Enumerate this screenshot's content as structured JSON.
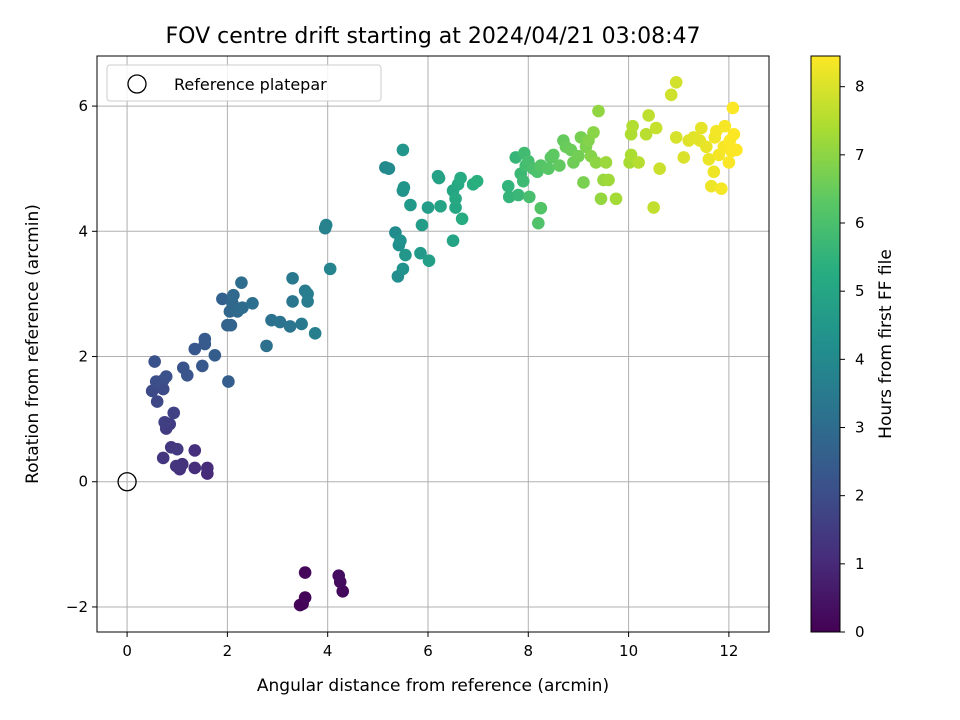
{
  "chart_data": {
    "type": "scatter",
    "title": "FOV centre drift starting at 2024/04/21 03:08:47",
    "xlabel": "Angular distance from reference (arcmin)",
    "ylabel": "Rotation from reference (arcmin)",
    "xlim": [
      -0.6,
      12.8
    ],
    "ylim": [
      -2.4,
      6.8
    ],
    "xticks": [
      0,
      2,
      4,
      6,
      8,
      10,
      12
    ],
    "yticks": [
      -2,
      0,
      2,
      4,
      6
    ],
    "xtick_labels": [
      "0",
      "2",
      "4",
      "6",
      "8",
      "10",
      "12"
    ],
    "ytick_labels": [
      "−2",
      "0",
      "2",
      "4",
      "6"
    ],
    "grid": true,
    "legend": {
      "placement": "top-left",
      "label": "Reference platepar",
      "marker": "open-circle"
    },
    "reference_point": {
      "x": 0,
      "y": 0
    },
    "colorbar": {
      "label": "Hours from first FF file",
      "colormap": "viridis",
      "range": [
        0,
        8.45
      ],
      "ticks": [
        0,
        1,
        2,
        3,
        4,
        5,
        6,
        7,
        8
      ],
      "tick_labels": [
        "0",
        "1",
        "2",
        "3",
        "4",
        "5",
        "6",
        "7",
        "8"
      ]
    },
    "series": [
      {
        "points": [
          [
            3.5,
            -1.95,
            0.05
          ],
          [
            3.45,
            -1.97,
            0.08
          ],
          [
            3.55,
            -1.85,
            0.12
          ],
          [
            3.55,
            -1.45,
            0.15
          ],
          [
            4.3,
            -1.75,
            0.2
          ],
          [
            4.25,
            -1.6,
            0.25
          ],
          [
            4.22,
            -1.5,
            0.3
          ],
          [
            1.6,
            0.13,
            1.0
          ],
          [
            1.6,
            0.22,
            1.05
          ],
          [
            1.35,
            0.22,
            1.1
          ],
          [
            1.35,
            0.5,
            1.15
          ],
          [
            1.05,
            0.2,
            1.2
          ],
          [
            1.1,
            0.28,
            1.25
          ],
          [
            0.98,
            0.25,
            1.3
          ],
          [
            0.72,
            0.38,
            1.35
          ],
          [
            0.88,
            0.55,
            1.4
          ],
          [
            1.0,
            0.52,
            1.45
          ],
          [
            0.78,
            0.85,
            1.5
          ],
          [
            0.85,
            0.92,
            1.55
          ],
          [
            0.75,
            0.95,
            1.6
          ],
          [
            0.93,
            1.1,
            1.65
          ],
          [
            0.6,
            1.28,
            1.85
          ],
          [
            0.5,
            1.45,
            1.9
          ],
          [
            0.72,
            1.48,
            1.95
          ],
          [
            0.72,
            1.62,
            2.0
          ],
          [
            0.58,
            1.6,
            2.05
          ],
          [
            0.78,
            1.68,
            2.1
          ],
          [
            0.55,
            1.92,
            2.15
          ],
          [
            1.12,
            1.82,
            2.2
          ],
          [
            1.2,
            1.7,
            2.25
          ],
          [
            1.35,
            2.12,
            2.3
          ],
          [
            1.5,
            1.85,
            2.35
          ],
          [
            1.55,
            2.2,
            2.4
          ],
          [
            1.55,
            2.28,
            2.45
          ],
          [
            1.75,
            2.02,
            2.5
          ],
          [
            2.02,
            1.6,
            2.55
          ],
          [
            1.9,
            2.92,
            2.65
          ],
          [
            2.0,
            2.5,
            2.7
          ],
          [
            2.07,
            2.5,
            2.75
          ],
          [
            2.05,
            2.72,
            2.8
          ],
          [
            2.1,
            2.85,
            2.85
          ],
          [
            2.12,
            2.98,
            2.9
          ],
          [
            2.2,
            2.72,
            2.95
          ],
          [
            2.3,
            2.78,
            3.0
          ],
          [
            2.28,
            3.18,
            3.05
          ],
          [
            2.5,
            2.85,
            3.1
          ],
          [
            2.78,
            2.17,
            3.15
          ],
          [
            2.88,
            2.58,
            3.2
          ],
          [
            3.05,
            2.55,
            3.25
          ],
          [
            3.25,
            2.48,
            3.3
          ],
          [
            3.3,
            2.88,
            3.35
          ],
          [
            3.3,
            3.25,
            3.4
          ],
          [
            3.48,
            2.52,
            3.45
          ],
          [
            3.55,
            3.05,
            3.5
          ],
          [
            3.6,
            2.88,
            3.55
          ],
          [
            3.6,
            3.0,
            3.6
          ],
          [
            3.75,
            2.37,
            3.65
          ],
          [
            3.95,
            4.05,
            3.7
          ],
          [
            3.97,
            4.1,
            3.75
          ],
          [
            4.05,
            3.4,
            3.8
          ],
          [
            5.15,
            5.02,
            4.0
          ],
          [
            5.22,
            5.0,
            4.05
          ],
          [
            5.35,
            3.98,
            4.1
          ],
          [
            5.4,
            3.28,
            4.15
          ],
          [
            5.42,
            3.78,
            4.2
          ],
          [
            5.45,
            3.85,
            4.25
          ],
          [
            5.5,
            3.4,
            4.3
          ],
          [
            5.5,
            4.65,
            4.35
          ],
          [
            5.52,
            4.7,
            4.4
          ],
          [
            5.5,
            5.3,
            4.45
          ],
          [
            5.55,
            3.62,
            4.5
          ],
          [
            5.65,
            4.42,
            4.55
          ],
          [
            5.85,
            3.65,
            4.6
          ],
          [
            5.88,
            4.1,
            4.65
          ],
          [
            6.0,
            4.38,
            4.7
          ],
          [
            6.02,
            3.53,
            4.75
          ],
          [
            6.2,
            4.88,
            4.8
          ],
          [
            6.22,
            4.85,
            4.85
          ],
          [
            6.25,
            4.4,
            4.9
          ],
          [
            6.5,
            3.85,
            4.95
          ],
          [
            6.5,
            4.65,
            5.0
          ],
          [
            6.55,
            4.38,
            5.05
          ],
          [
            6.55,
            4.52,
            5.1
          ],
          [
            6.6,
            4.75,
            5.15
          ],
          [
            6.65,
            4.85,
            5.2
          ],
          [
            6.68,
            4.2,
            5.25
          ],
          [
            6.9,
            4.75,
            5.3
          ],
          [
            6.98,
            4.8,
            5.35
          ],
          [
            7.6,
            4.72,
            5.5
          ],
          [
            7.62,
            4.55,
            5.55
          ],
          [
            7.75,
            5.18,
            5.6
          ],
          [
            7.8,
            4.58,
            5.65
          ],
          [
            7.85,
            4.92,
            5.7
          ],
          [
            7.9,
            4.8,
            5.75
          ],
          [
            7.92,
            5.25,
            5.8
          ],
          [
            7.95,
            5.05,
            5.85
          ],
          [
            8.0,
            5.12,
            5.9
          ],
          [
            8.02,
            4.55,
            5.95
          ],
          [
            8.1,
            5.0,
            6.0
          ],
          [
            8.18,
            4.95,
            6.05
          ],
          [
            8.2,
            4.13,
            6.1
          ],
          [
            8.25,
            4.37,
            6.15
          ],
          [
            8.25,
            5.05,
            6.2
          ],
          [
            8.4,
            5.0,
            6.25
          ],
          [
            8.45,
            5.18,
            6.3
          ],
          [
            8.5,
            5.22,
            6.35
          ],
          [
            8.62,
            5.05,
            6.4
          ],
          [
            8.7,
            5.45,
            6.45
          ],
          [
            8.75,
            5.35,
            6.5
          ],
          [
            8.85,
            5.3,
            6.55
          ],
          [
            8.9,
            5.1,
            6.6
          ],
          [
            9.0,
            5.2,
            6.65
          ],
          [
            9.05,
            5.5,
            6.7
          ],
          [
            9.1,
            4.78,
            6.75
          ],
          [
            9.15,
            5.35,
            6.8
          ],
          [
            9.2,
            5.45,
            6.85
          ],
          [
            9.25,
            5.2,
            6.9
          ],
          [
            9.3,
            5.58,
            6.95
          ],
          [
            9.35,
            5.1,
            7.0
          ],
          [
            9.4,
            5.92,
            7.05
          ],
          [
            9.45,
            4.52,
            7.1
          ],
          [
            9.5,
            4.82,
            7.15
          ],
          [
            9.55,
            5.1,
            7.2
          ],
          [
            9.6,
            4.82,
            7.25
          ],
          [
            9.75,
            4.52,
            7.3
          ],
          [
            10.02,
            5.1,
            7.35
          ],
          [
            10.05,
            5.22,
            7.4
          ],
          [
            10.05,
            5.55,
            7.45
          ],
          [
            10.08,
            5.68,
            7.5
          ],
          [
            10.2,
            5.1,
            7.55
          ],
          [
            10.35,
            5.55,
            7.6
          ],
          [
            10.4,
            5.85,
            7.65
          ],
          [
            10.5,
            4.38,
            7.7
          ],
          [
            10.55,
            5.65,
            7.75
          ],
          [
            10.62,
            5.0,
            7.8
          ],
          [
            10.85,
            6.18,
            7.85
          ],
          [
            10.95,
            6.38,
            7.9
          ],
          [
            10.95,
            5.5,
            7.95
          ],
          [
            11.1,
            5.18,
            8.0
          ],
          [
            11.2,
            5.45,
            8.05
          ],
          [
            11.3,
            5.5,
            8.1
          ],
          [
            11.42,
            5.45,
            8.12
          ],
          [
            11.45,
            5.65,
            8.15
          ],
          [
            11.55,
            5.35,
            8.2
          ],
          [
            11.6,
            5.15,
            8.22
          ],
          [
            11.65,
            4.72,
            8.25
          ],
          [
            11.7,
            4.95,
            8.27
          ],
          [
            11.72,
            5.5,
            8.3
          ],
          [
            11.75,
            5.6,
            8.32
          ],
          [
            11.8,
            5.22,
            8.34
          ],
          [
            11.85,
            4.68,
            8.35
          ],
          [
            11.9,
            5.35,
            8.37
          ],
          [
            11.92,
            5.68,
            8.38
          ],
          [
            12.0,
            5.1,
            8.4
          ],
          [
            12.02,
            5.45,
            8.41
          ],
          [
            12.05,
            5.28,
            8.42
          ],
          [
            12.08,
            5.97,
            8.43
          ],
          [
            12.1,
            5.55,
            8.44
          ],
          [
            12.15,
            5.3,
            8.45
          ]
        ]
      }
    ]
  }
}
